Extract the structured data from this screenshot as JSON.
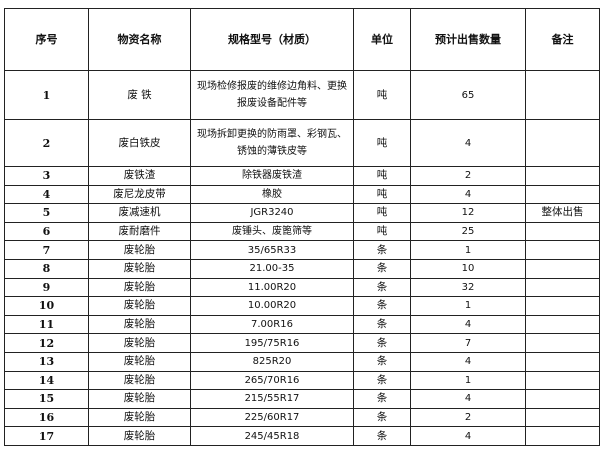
{
  "headers": [
    "序号",
    "物资名称",
    "规格型号（材质）",
    "单位",
    "预计出售数量",
    "备注"
  ],
  "rows": [
    {
      "no": "1",
      "name": "废  铁",
      "spec": "现场检修报废的维修边角料、更换报废设备配件等",
      "unit": "吨",
      "qty": "65",
      "note": ""
    },
    {
      "no": "2",
      "name": "废白铁皮",
      "spec": "现场拆卸更换的防雨罩、彩钢瓦、锈蚀的薄铁皮等",
      "unit": "吨",
      "qty": "4",
      "note": ""
    },
    {
      "no": "3",
      "name": "废铁渣",
      "spec": "除铁器废铁渣",
      "unit": "吨",
      "qty": "2",
      "note": ""
    },
    {
      "no": "4",
      "name": "废尼龙皮带",
      "spec": "橡胶",
      "unit": "吨",
      "qty": "4",
      "note": ""
    },
    {
      "no": "5",
      "name": "废减速机",
      "spec": "JGR3240",
      "unit": "吨",
      "qty": "12",
      "note": "整体出售"
    },
    {
      "no": "6",
      "name": "废耐磨件",
      "spec": "废锤头、废篦筛等",
      "unit": "吨",
      "qty": "25",
      "note": ""
    },
    {
      "no": "7",
      "name": "废轮胎",
      "spec": "35/65R33",
      "unit": "条",
      "qty": "1",
      "note": ""
    },
    {
      "no": "8",
      "name": "废轮胎",
      "spec": "21.00-35",
      "unit": "条",
      "qty": "10",
      "note": ""
    },
    {
      "no": "9",
      "name": "废轮胎",
      "spec": "11.00R20",
      "unit": "条",
      "qty": "32",
      "note": ""
    },
    {
      "no": "10",
      "name": "废轮胎",
      "spec": "10.00R20",
      "unit": "条",
      "qty": "1",
      "note": ""
    },
    {
      "no": "11",
      "name": "废轮胎",
      "spec": "7.00R16",
      "unit": "条",
      "qty": "4",
      "note": ""
    },
    {
      "no": "12",
      "name": "废轮胎",
      "spec": "195/75R16",
      "unit": "条",
      "qty": "7",
      "note": ""
    },
    {
      "no": "13",
      "name": "废轮胎",
      "spec": "825R20",
      "unit": "条",
      "qty": "4",
      "note": ""
    },
    {
      "no": "14",
      "name": "废轮胎",
      "spec": "265/70R16",
      "unit": "条",
      "qty": "1",
      "note": ""
    },
    {
      "no": "15",
      "name": "废轮胎",
      "spec": "215/55R17",
      "unit": "条",
      "qty": "4",
      "note": ""
    },
    {
      "no": "16",
      "name": "废轮胎",
      "spec": "225/60R17",
      "unit": "条",
      "qty": "2",
      "note": ""
    },
    {
      "no": "17",
      "name": "废轮胎",
      "spec": "245/45R18",
      "unit": "条",
      "qty": "4",
      "note": ""
    }
  ]
}
